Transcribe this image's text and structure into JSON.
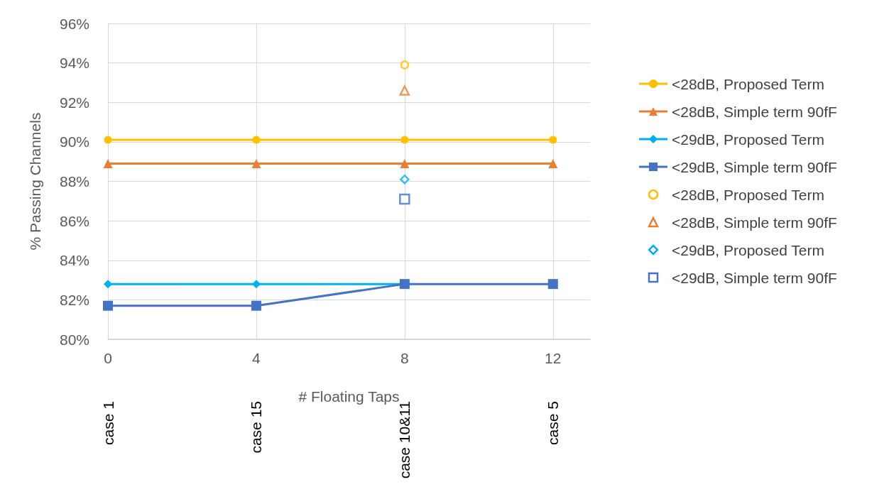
{
  "chart_data": {
    "type": "line",
    "xlabel": "# Floating Taps",
    "ylabel": "% Passing Channels",
    "x": [
      0,
      4,
      8,
      12
    ],
    "xlim": [
      0,
      13
    ],
    "xticks": [
      0,
      4,
      8,
      12
    ],
    "ylim": [
      80,
      96
    ],
    "yticks": [
      {
        "value": 80,
        "label": "80%"
      },
      {
        "value": 82,
        "label": "82%"
      },
      {
        "value": 84,
        "label": "84%"
      },
      {
        "value": 86,
        "label": "86%"
      },
      {
        "value": 88,
        "label": "88%"
      },
      {
        "value": 90,
        "label": "90%"
      },
      {
        "value": 92,
        "label": "92%"
      },
      {
        "value": 94,
        "label": "94%"
      },
      {
        "value": 96,
        "label": "96%"
      }
    ],
    "grid": true,
    "legend": "right",
    "series": [
      {
        "name": "<28dB, Proposed Term",
        "marker": "circle",
        "color": "#ffc000",
        "values": [
          90.1,
          90.1,
          90.1,
          90.1
        ]
      },
      {
        "name": "<28dB, Simple term 90fF",
        "marker": "triangle",
        "color": "#ed7d31",
        "values": [
          88.9,
          88.9,
          88.9,
          88.9
        ]
      },
      {
        "name": "<29dB, Proposed Term",
        "marker": "diamond",
        "color": "#00b0f0",
        "values": [
          82.8,
          82.8,
          82.8,
          null
        ]
      },
      {
        "name": "<29dB, Simple term 90fF",
        "marker": "square",
        "color": "#4472c4",
        "values": [
          81.7,
          81.7,
          82.8,
          82.8
        ]
      },
      {
        "name": "<28dB, Proposed Term",
        "type": "scatter",
        "marker": "circle",
        "color": "#ffc000",
        "values": [
          null,
          null,
          93.9,
          null
        ]
      },
      {
        "name": "<28dB, Simple term 90fF",
        "type": "scatter",
        "marker": "triangle",
        "color": "#ed7d31",
        "values": [
          null,
          null,
          92.6,
          null
        ]
      },
      {
        "name": "<29dB, Proposed Term",
        "type": "scatter",
        "marker": "diamond",
        "color": "#00b0f0",
        "values": [
          null,
          null,
          88.1,
          null
        ]
      },
      {
        "name": "<29dB, Simple term 90fF",
        "type": "scatter",
        "marker": "square",
        "color": "#4472c4",
        "values": [
          null,
          null,
          87.1,
          null
        ]
      }
    ],
    "annotations": [
      "case 1",
      "case 15",
      "case 10&11",
      "case 5"
    ]
  }
}
